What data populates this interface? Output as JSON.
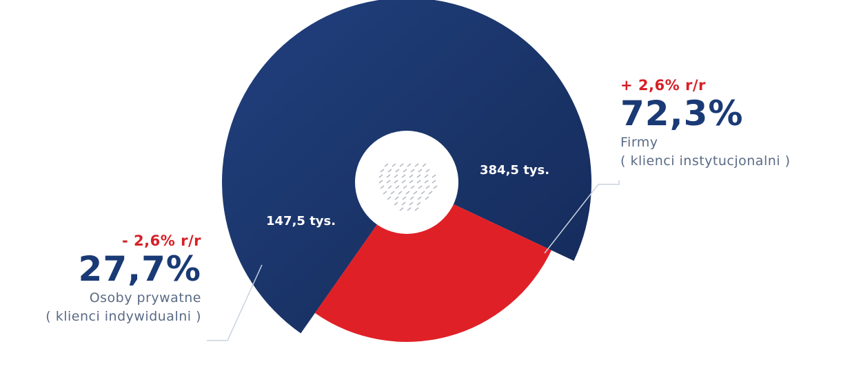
{
  "chart_data": {
    "type": "pie",
    "slices": [
      {
        "value": 384.5,
        "value_label": "384,5 tys.",
        "percent": 72.3,
        "percent_label": "72,3%",
        "change_label": "+ 2,6% r/r",
        "label_line1": "Firmy",
        "label_line2": "( klienci instytucjonalni )",
        "color": "#1a3a75"
      },
      {
        "value": 147.5,
        "value_label": "147,5 tys.",
        "percent": 27.7,
        "percent_label": "27,7%",
        "change_label": "- 2,6% r/r",
        "label_line1": "Osoby prywatne",
        "label_line2": "( klienci indywidualni )",
        "color": "#e02027"
      }
    ]
  },
  "colors": {
    "accent_blue": "#1a3a75",
    "accent_red": "#d62027",
    "muted_text": "#5a6a85",
    "leader_line": "#c9d2de"
  }
}
